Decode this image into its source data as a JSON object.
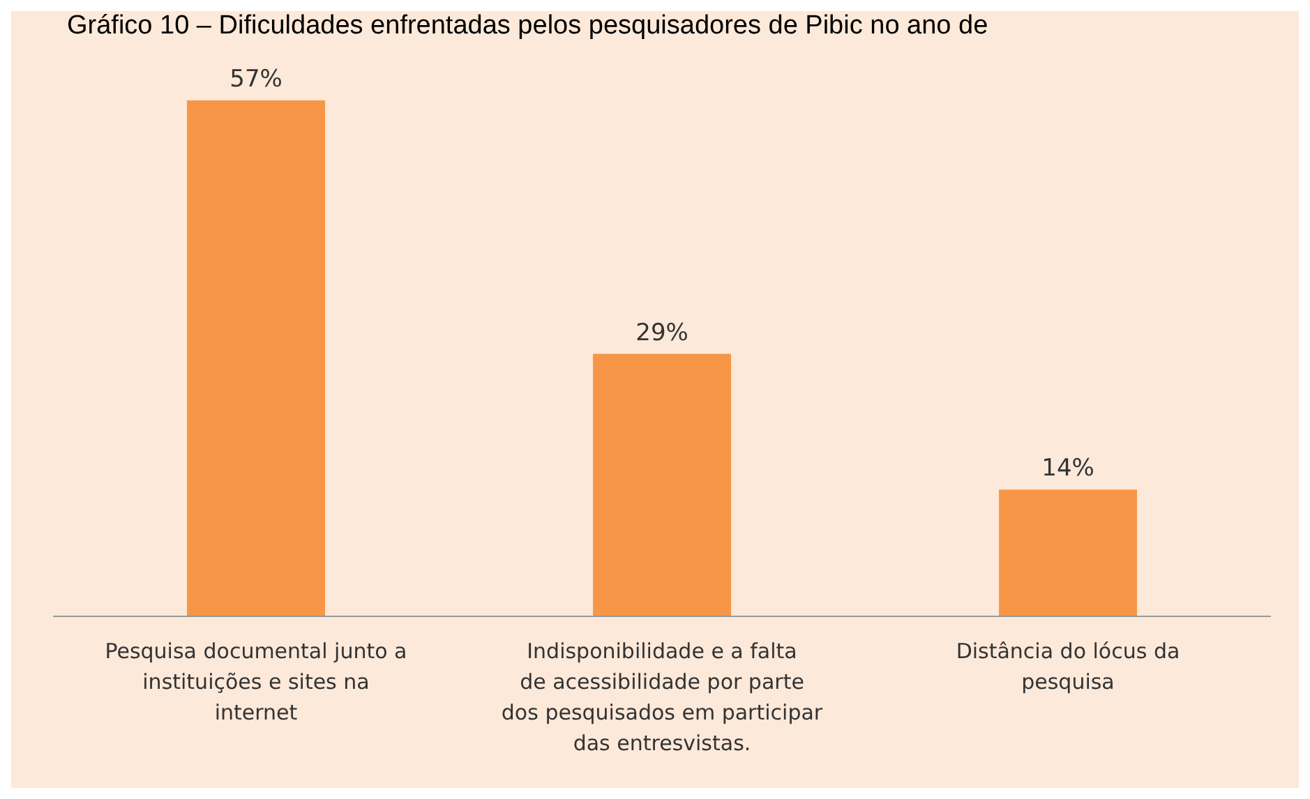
{
  "chart_data": {
    "type": "bar",
    "title": "Gráfico 10 – Dificuldades enfrentadas pelos pesquisadores de Pibic no ano de",
    "categories": [
      "Pesquisa documental junto a instituições e sites na internet",
      "Indisponibilidade e a falta de acessibilidade por parte dos pesquisados em participar das entresvistas.",
      "Distância do lócus da pesquisa"
    ],
    "values": [
      57,
      29,
      14
    ],
    "value_labels": [
      "57%",
      "29%",
      "14%"
    ],
    "color": "#f79646"
  }
}
